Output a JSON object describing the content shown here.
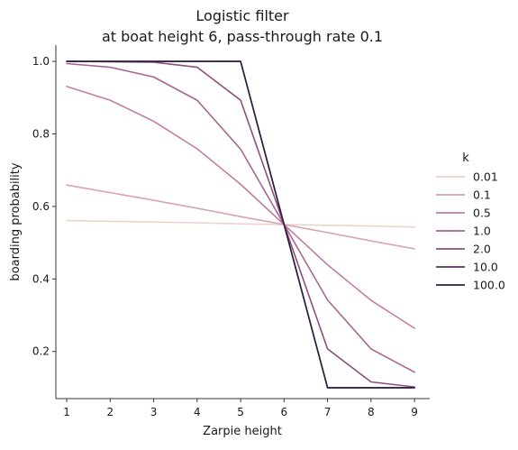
{
  "chart_data": {
    "type": "line",
    "title": "Logistic filter",
    "subtitle": "at boat height 6, pass-through rate 0.1",
    "xlabel": "Zarpie height",
    "ylabel": "boarding probability",
    "x": [
      1,
      2,
      3,
      4,
      5,
      6,
      7,
      8,
      9
    ],
    "xlim": [
      0.75,
      9.35
    ],
    "ylim": [
      0.07,
      1.045
    ],
    "x_ticks": [
      1,
      2,
      3,
      4,
      5,
      6,
      7,
      8,
      9
    ],
    "y_ticks": [
      0.2,
      0.4,
      0.6,
      0.8,
      1.0
    ],
    "grid": false,
    "legend_title": "k",
    "legend_position": "right",
    "series": [
      {
        "name": "0.01",
        "color": "#ecd3c8",
        "values": [
          0.561,
          0.559,
          0.557,
          0.555,
          0.552,
          0.55,
          0.548,
          0.546,
          0.543
        ]
      },
      {
        "name": "0.1",
        "color": "#d7a3b2",
        "values": [
          0.659,
          0.638,
          0.617,
          0.595,
          0.572,
          0.55,
          0.528,
          0.505,
          0.483
        ]
      },
      {
        "name": "0.5",
        "color": "#c17ea0",
        "values": [
          0.931,
          0.893,
          0.835,
          0.759,
          0.661,
          0.55,
          0.439,
          0.341,
          0.264
        ]
      },
      {
        "name": "1.0",
        "color": "#a9658f",
        "values": [
          0.994,
          0.984,
          0.957,
          0.893,
          0.758,
          0.55,
          0.342,
          0.207,
          0.143
        ]
      },
      {
        "name": "2.0",
        "color": "#8c4f80",
        "values": [
          1.0,
          0.999,
          0.998,
          0.984,
          0.893,
          0.55,
          0.207,
          0.116,
          0.102
        ]
      },
      {
        "name": "10.0",
        "color": "#5c3263",
        "values": [
          1.0,
          1.0,
          1.0,
          1.0,
          1.0,
          0.55,
          0.1,
          0.1,
          0.1
        ]
      },
      {
        "name": "100.0",
        "color": "#2d1e3e",
        "values": [
          1.0,
          1.0,
          1.0,
          1.0,
          1.0,
          0.55,
          0.1,
          0.1,
          0.1
        ]
      }
    ]
  }
}
